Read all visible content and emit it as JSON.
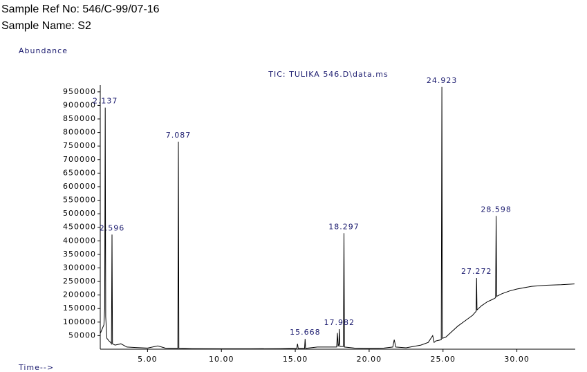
{
  "header": {
    "sample_ref": "Sample Ref No: 546/C-99/07-16",
    "sample_name": "Sample Name: S2"
  },
  "chart_data": {
    "type": "line",
    "title": "TIC: TULIKA 546.D\\data.ms",
    "y_label": "Abundance",
    "x_label": "Time-->",
    "xlim": [
      1.8,
      33.95
    ],
    "ylim": [
      0,
      970000
    ],
    "xticks": [
      {
        "value": 5,
        "label": "5.00"
      },
      {
        "value": 10,
        "label": "10.00"
      },
      {
        "value": 15,
        "label": "15.00"
      },
      {
        "value": 20,
        "label": "20.00"
      },
      {
        "value": 25,
        "label": "25.00"
      },
      {
        "value": 30,
        "label": "30.00"
      }
    ],
    "yticks": [
      50000,
      100000,
      150000,
      200000,
      250000,
      300000,
      350000,
      400000,
      450000,
      500000,
      550000,
      600000,
      650000,
      700000,
      750000,
      800000,
      850000,
      900000,
      950000
    ],
    "series": [
      {
        "name": "TIC",
        "color": "#000000",
        "x": [
          1.82,
          2.05,
          2.1,
          2.137,
          2.17,
          2.25,
          2.4,
          2.5,
          2.56,
          2.596,
          2.63,
          2.8,
          3.2,
          3.6,
          4.2,
          5.0,
          5.7,
          6.2,
          7.05,
          7.087,
          7.12,
          8,
          10,
          12,
          14,
          15.1,
          15.15,
          15.2,
          15.63,
          15.668,
          15.7,
          16.5,
          17.8,
          17.85,
          17.9,
          17.95,
          17.982,
          18.02,
          18.26,
          18.297,
          18.33,
          19,
          20,
          21,
          21.6,
          21.7,
          21.8,
          22.5,
          23.5,
          24,
          24.3,
          24.4,
          24.5,
          24.88,
          24.923,
          24.96,
          25.2,
          25.5,
          26,
          26.5,
          27.0,
          27.24,
          27.272,
          27.3,
          27.6,
          28.0,
          28.4,
          28.56,
          28.598,
          28.63,
          29.0,
          29.5,
          30,
          31,
          32,
          33,
          33.9
        ],
        "values": [
          60000,
          90000,
          150000,
          892000,
          120000,
          40000,
          30000,
          25000,
          20000,
          423000,
          20000,
          15000,
          20000,
          8000,
          6000,
          4000,
          12000,
          4000,
          3000,
          766000,
          3000,
          2000,
          1500,
          1500,
          2000,
          3000,
          20000,
          3000,
          3000,
          38000,
          3000,
          8000,
          8000,
          60000,
          10000,
          20000,
          74000,
          10000,
          10000,
          428000,
          8000,
          4000,
          3000,
          4000,
          8000,
          35000,
          8000,
          5000,
          15000,
          25000,
          50000,
          25000,
          30000,
          35000,
          968000,
          40000,
          45000,
          60000,
          85000,
          105000,
          125000,
          140000,
          263000,
          145000,
          160000,
          175000,
          185000,
          190000,
          492000,
          195000,
          205000,
          215000,
          222000,
          232000,
          236000,
          238000,
          241000
        ]
      }
    ],
    "peak_labels": [
      2.137,
      2.596,
      7.087,
      15.668,
      17.982,
      18.297,
      24.923,
      27.272,
      28.598
    ]
  }
}
